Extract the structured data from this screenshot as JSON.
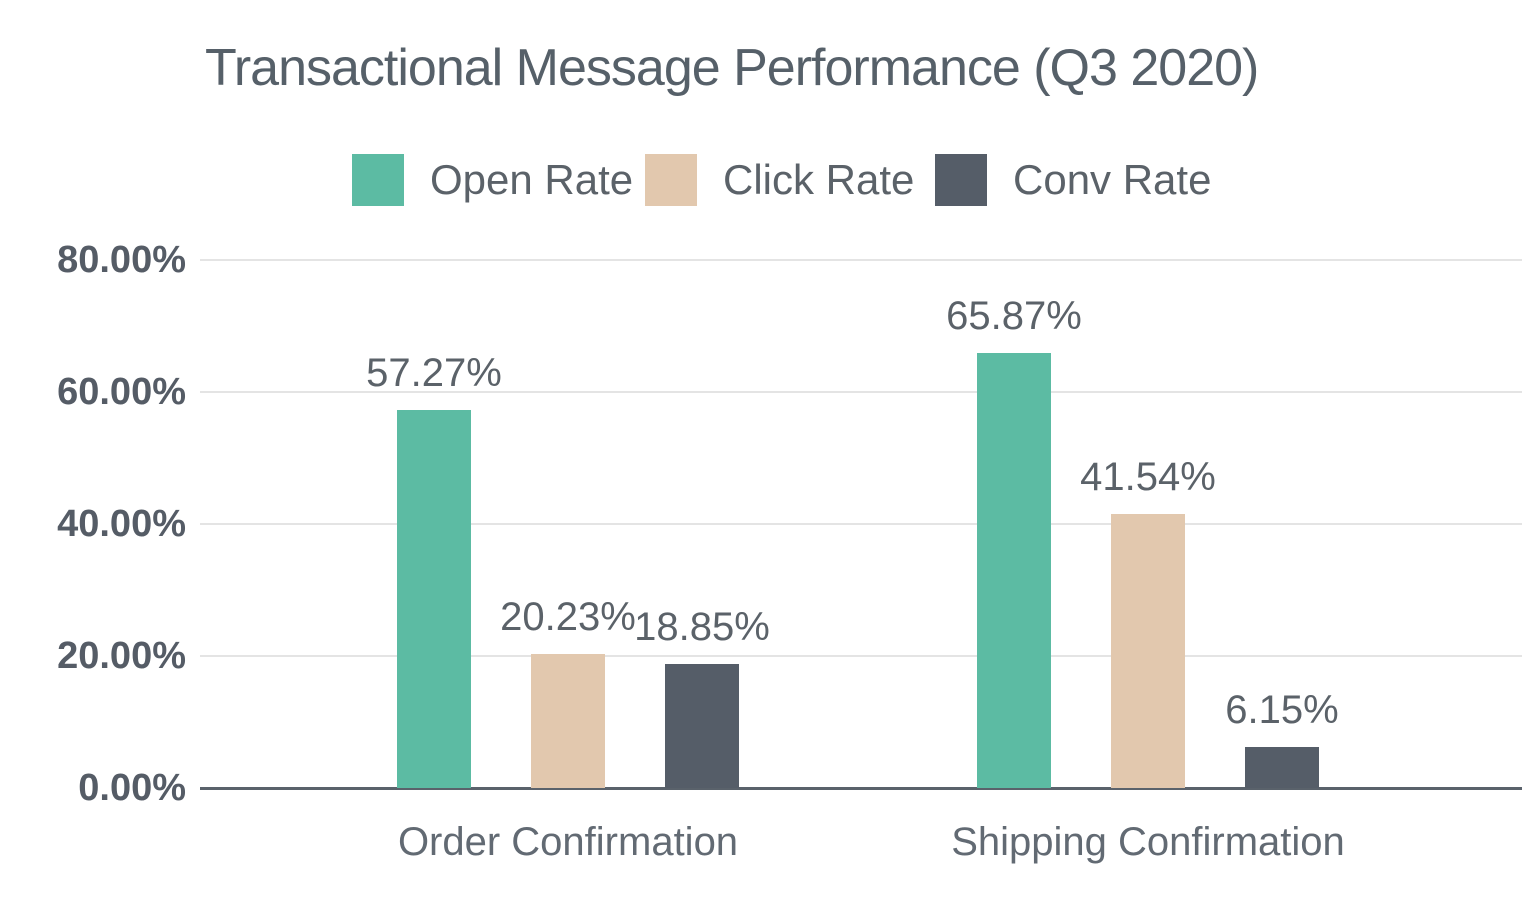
{
  "title": "Transactional Message Performance (Q3 2020)",
  "colors": {
    "open_rate": "#5cbba3",
    "click_rate": "#e2c8ae",
    "conv_rate": "#555d68",
    "title_text": "#566069",
    "tick_text": "#555c66",
    "category_text": "#626a73",
    "gridline": "#e4e4e4",
    "axis_line": "#5a626b",
    "background": "#ffffff"
  },
  "chart_data": {
    "type": "bar",
    "title": "Transactional Message Performance (Q3 2020)",
    "categories": [
      "Order Confirmation",
      "Shipping Confirmation"
    ],
    "series": [
      {
        "name": "Open Rate",
        "color": "#5cbba3",
        "values": [
          57.27,
          65.87
        ]
      },
      {
        "name": "Click Rate",
        "color": "#e2c8ae",
        "values": [
          20.23,
          41.54
        ]
      },
      {
        "name": "Conv Rate",
        "color": "#555d68",
        "values": [
          18.85,
          6.15
        ]
      }
    ],
    "value_labels": [
      [
        "57.27%",
        "20.23%",
        "18.85%"
      ],
      [
        "65.87%",
        "41.54%",
        "6.15%"
      ]
    ],
    "y_ticks": [
      "80.00%",
      "60.00%",
      "40.00%",
      "20.00%",
      "0.00%"
    ],
    "y_tick_values": [
      80,
      60,
      40,
      20,
      0
    ],
    "ylim": [
      0,
      80
    ],
    "xlabel": "",
    "ylabel": "",
    "grid": true,
    "legend_position": "top"
  }
}
